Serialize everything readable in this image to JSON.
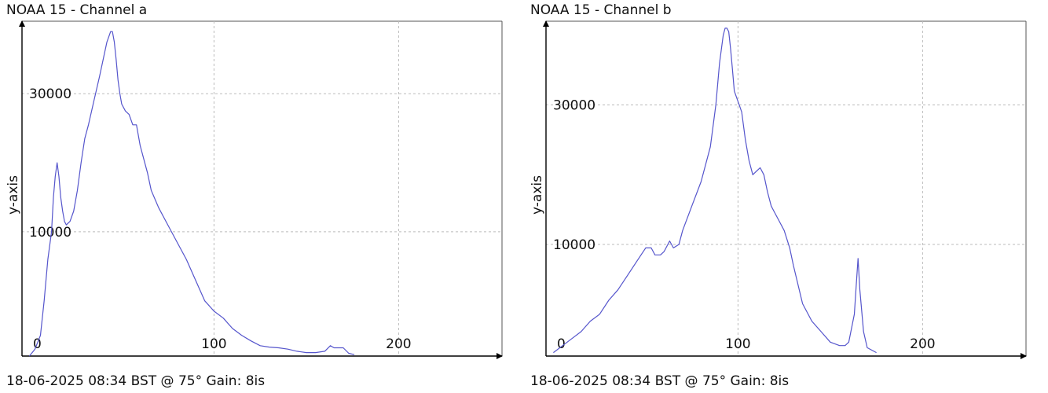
{
  "chart_data": [
    {
      "type": "line",
      "title": "NOAA 15 - Channel a",
      "ylabel": "y-axis",
      "xlabel": "",
      "xlim": [
        -4,
        256
      ],
      "ylim": [
        -8000,
        40500
      ],
      "x_ticks": [
        0,
        100,
        200
      ],
      "y_ticks": [
        10000,
        30000
      ],
      "grid": true,
      "line_color": "#5555cc",
      "footer": {
        "timestamp": "18-06-2025 08:34 BST @ 75°",
        "gain_label": "Gain:",
        "gain_value": "8is"
      },
      "series": [
        {
          "x": [
            0,
            3,
            6,
            8,
            10,
            12,
            13,
            14,
            15,
            16,
            17,
            18,
            19,
            20,
            22,
            24,
            26,
            28,
            30,
            32,
            35,
            38,
            40,
            42,
            44,
            45,
            46,
            47,
            48,
            49,
            50,
            52,
            54,
            56,
            58,
            60,
            62,
            64,
            66,
            70,
            75,
            80,
            85,
            90,
            95,
            100,
            105,
            110,
            115,
            120,
            125,
            130,
            135,
            140,
            145,
            150,
            155,
            160,
            163,
            165,
            167,
            170,
            173,
            176
          ],
          "y": [
            -8000,
            -7000,
            -5000,
            0,
            6000,
            10000,
            15000,
            18000,
            20000,
            18000,
            15000,
            13000,
            11500,
            11000,
            11500,
            13000,
            16000,
            20000,
            23500,
            25500,
            29000,
            32500,
            35000,
            37500,
            39000,
            39000,
            37500,
            35000,
            32000,
            30000,
            28500,
            27500,
            27000,
            25500,
            25500,
            22500,
            20500,
            18500,
            16000,
            13500,
            11000,
            8500,
            6000,
            3000,
            0,
            -1500,
            -2500,
            -4000,
            -5000,
            -5800,
            -6500,
            -6700,
            -6800,
            -7000,
            -7300,
            -7500,
            -7500,
            -7300,
            -6500,
            -6800,
            -6800,
            -6800,
            -7600,
            -7800
          ]
        }
      ]
    },
    {
      "type": "line",
      "title": "NOAA 15 - Channel b",
      "ylabel": "y-axis",
      "xlabel": "",
      "xlim": [
        -4,
        256
      ],
      "ylim": [
        -6000,
        42000
      ],
      "x_ticks": [
        0,
        100,
        200
      ],
      "y_ticks": [
        10000,
        30000
      ],
      "grid": true,
      "line_color": "#5555cc",
      "footer": {
        "timestamp": "18-06-2025 08:34 BST @ 75°",
        "gain_label": "Gain:",
        "gain_value": "8is"
      },
      "series": [
        {
          "x": [
            0,
            5,
            10,
            15,
            20,
            25,
            30,
            35,
            40,
            45,
            50,
            53,
            55,
            58,
            60,
            63,
            65,
            68,
            70,
            75,
            80,
            85,
            88,
            90,
            92,
            93,
            94,
            95,
            96,
            97,
            98,
            100,
            102,
            104,
            106,
            108,
            110,
            112,
            114,
            116,
            118,
            120,
            122,
            125,
            128,
            130,
            135,
            140,
            145,
            150,
            155,
            158,
            160,
            163,
            164,
            165,
            166,
            168,
            170,
            175
          ],
          "y": [
            -5500,
            -4500,
            -3500,
            -2500,
            -1000,
            0,
            2000,
            3500,
            5500,
            7500,
            9500,
            9500,
            8500,
            8500,
            9000,
            10500,
            9500,
            10000,
            12000,
            15500,
            19000,
            24000,
            30000,
            36000,
            40000,
            41000,
            41000,
            40500,
            38000,
            35000,
            32000,
            30500,
            29000,
            25000,
            22000,
            20000,
            20500,
            21000,
            20000,
            17500,
            15500,
            14500,
            13500,
            12000,
            9500,
            7000,
            1500,
            -1000,
            -2500,
            -4000,
            -4500,
            -4500,
            -4000,
            0,
            4000,
            8000,
            3500,
            -2500,
            -4800,
            -5500
          ]
        }
      ]
    }
  ]
}
